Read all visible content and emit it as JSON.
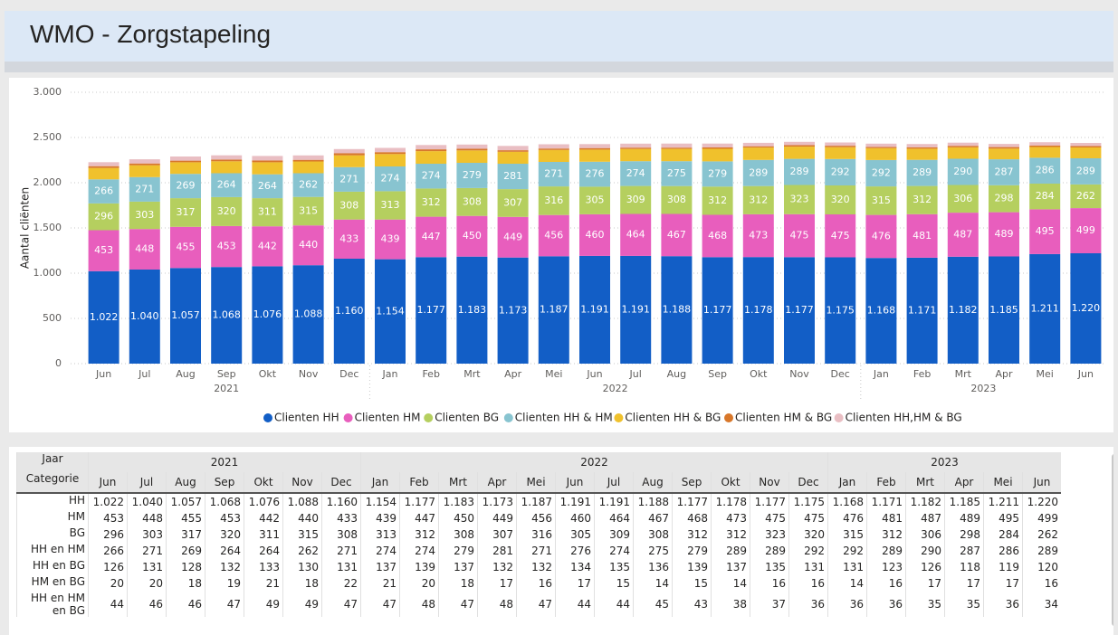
{
  "header": {
    "title": "WMO - Zorgstapeling"
  },
  "chart_data": {
    "type": "bar",
    "stacked": true,
    "y_label": "Aantal cliënten",
    "categories": [
      "Jun",
      "Jul",
      "Aug",
      "Sep",
      "Okt",
      "Nov",
      "Dec",
      "Jan",
      "Feb",
      "Mrt",
      "Apr",
      "Mei",
      "Jun",
      "Jul",
      "Aug",
      "Sep",
      "Okt",
      "Nov",
      "Dec",
      "Jan",
      "Feb",
      "Mrt",
      "Apr",
      "Mei",
      "Jun"
    ],
    "x_groups": [
      {
        "label": "2021",
        "count": 7
      },
      {
        "label": "2022",
        "count": 12
      },
      {
        "label": "2023",
        "count": 6
      }
    ],
    "series": [
      {
        "name": "Clienten HH",
        "color": "#125ec6",
        "show_labels": true,
        "values": [
          1022,
          1040,
          1057,
          1068,
          1076,
          1088,
          1160,
          1154,
          1177,
          1183,
          1173,
          1187,
          1191,
          1191,
          1188,
          1177,
          1178,
          1177,
          1175,
          1168,
          1171,
          1182,
          1185,
          1211,
          1220
        ],
        "value_labels": [
          "1.022",
          "1.040",
          "1.057",
          "1.068",
          "1.076",
          "1.088",
          "1.160",
          "1.154",
          "1.177",
          "1.183",
          "1.173",
          "1.187",
          "1.191",
          "1.191",
          "1.188",
          "1.177",
          "1.178",
          "1.177",
          "1.175",
          "1.168",
          "1.171",
          "1.182",
          "1.185",
          "1.211",
          "1.220"
        ]
      },
      {
        "name": "Clienten HM",
        "color": "#e85ebd",
        "show_labels": true,
        "values": [
          453,
          448,
          455,
          453,
          442,
          440,
          433,
          439,
          447,
          450,
          449,
          456,
          460,
          464,
          467,
          468,
          473,
          475,
          475,
          476,
          481,
          487,
          489,
          495,
          499
        ]
      },
      {
        "name": "Clienten BG",
        "color": "#b5cf5f",
        "show_labels": true,
        "values": [
          296,
          303,
          317,
          320,
          311,
          315,
          308,
          313,
          312,
          308,
          307,
          316,
          305,
          309,
          308,
          312,
          312,
          323,
          320,
          315,
          312,
          306,
          298,
          284,
          262
        ]
      },
      {
        "name": "Clienten HH & HM",
        "color": "#88c4d0",
        "show_labels": true,
        "values": [
          266,
          271,
          269,
          264,
          264,
          262,
          271,
          274,
          274,
          279,
          281,
          271,
          276,
          274,
          275,
          279,
          289,
          289,
          292,
          292,
          289,
          290,
          287,
          286,
          289
        ]
      },
      {
        "name": "Clienten HH & BG",
        "color": "#f0c12c",
        "show_labels": false,
        "values": [
          126,
          131,
          128,
          132,
          133,
          130,
          131,
          137,
          139,
          137,
          132,
          132,
          134,
          135,
          136,
          139,
          137,
          135,
          131,
          131,
          123,
          126,
          118,
          119,
          120
        ]
      },
      {
        "name": "Clienten HM & BG",
        "color": "#d8772a",
        "show_labels": false,
        "values": [
          20,
          20,
          18,
          19,
          21,
          18,
          22,
          21,
          20,
          18,
          17,
          16,
          17,
          15,
          14,
          15,
          14,
          16,
          16,
          14,
          16,
          17,
          17,
          17,
          16
        ]
      },
      {
        "name": "Clienten HH,HM & BG",
        "color": "#e9bec3",
        "show_labels": false,
        "values": [
          44,
          46,
          46,
          47,
          49,
          49,
          47,
          47,
          48,
          47,
          48,
          47,
          44,
          44,
          45,
          43,
          38,
          37,
          36,
          36,
          36,
          35,
          35,
          36,
          34
        ]
      }
    ],
    "ylim": [
      0,
      3000
    ],
    "yticks": [
      0,
      500,
      {
        "value": 1000,
        "label": "1.000"
      },
      {
        "value": 1500,
        "label": "1.500"
      },
      {
        "value": 2000,
        "label": "2.000"
      },
      {
        "value": 2500,
        "label": "2.500"
      },
      {
        "value": 3000,
        "label": "3.000"
      }
    ],
    "grid": true,
    "legend": "bottom"
  },
  "table": {
    "jaar_label": "Jaar",
    "categorie_label": "Categorie",
    "row_labels": [
      "HH",
      "HM",
      "BG",
      "HH en HM",
      "HH en BG",
      "HM en BG",
      "HH en HM en BG"
    ]
  }
}
